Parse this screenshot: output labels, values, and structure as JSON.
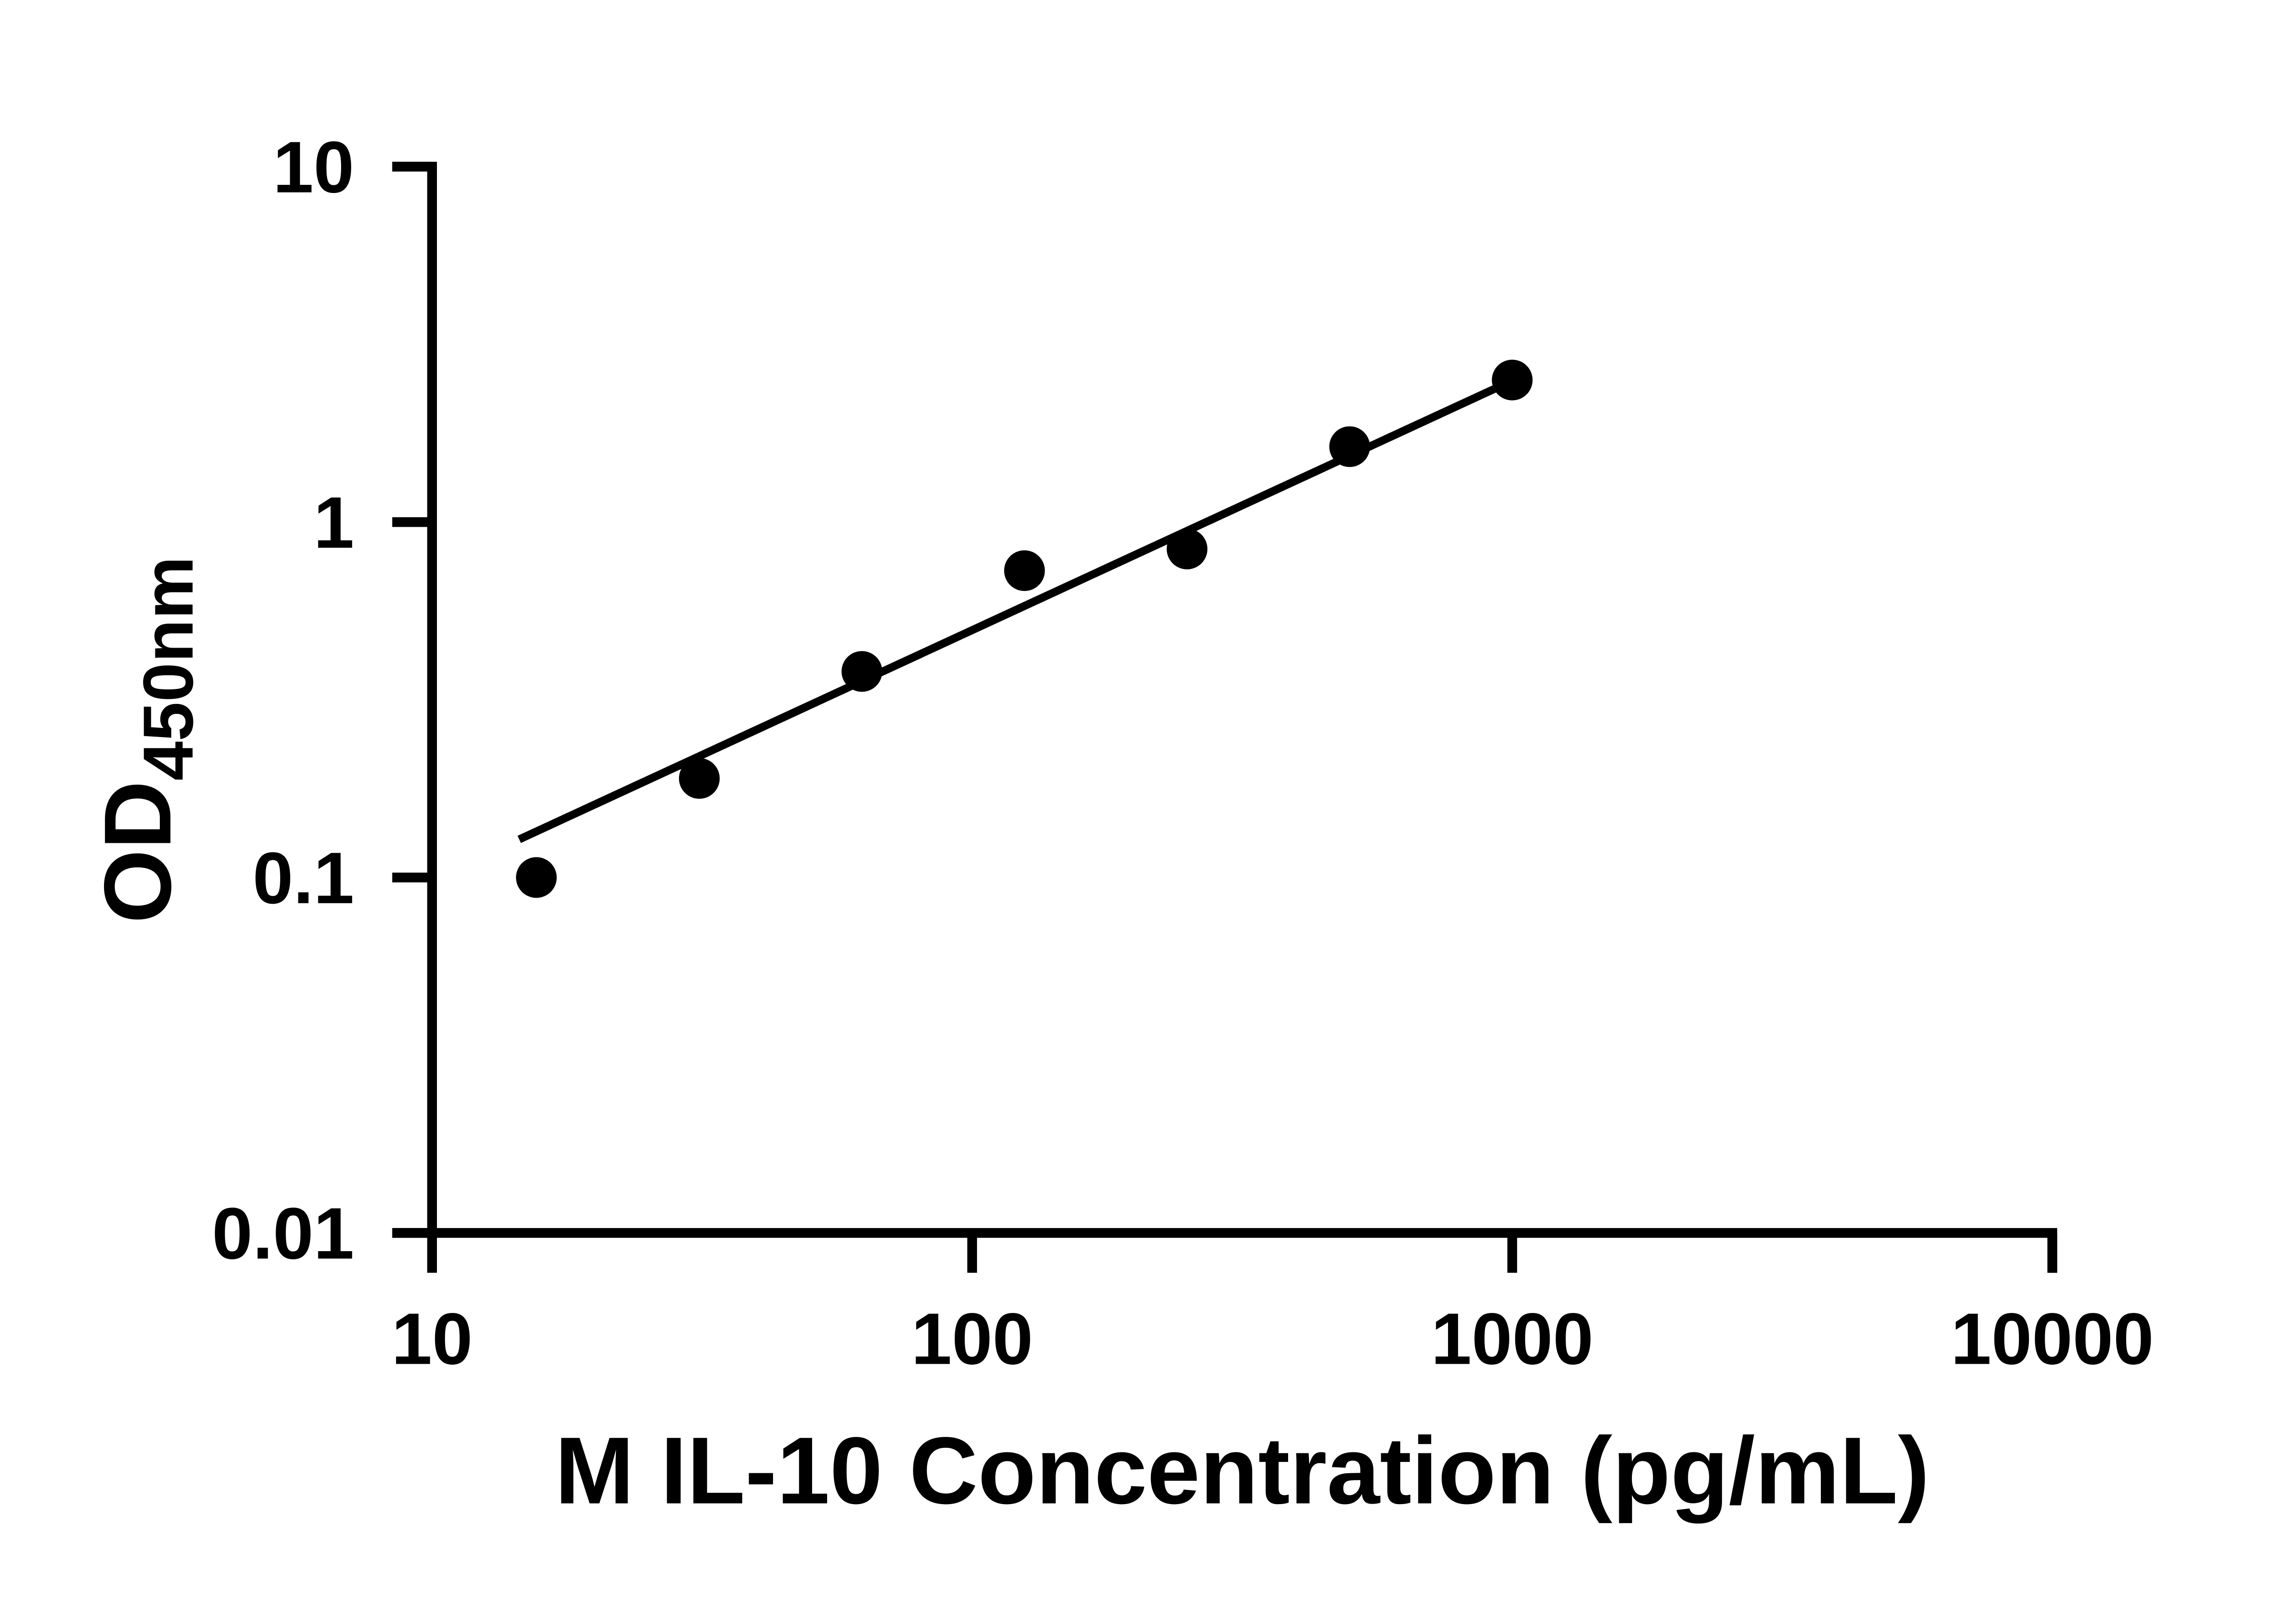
{
  "colors": {
    "foreground": "#000000",
    "background": "#ffffff"
  },
  "chart_data": {
    "type": "scatter",
    "title": "",
    "xlabel": "M IL-10 Concentration (pg/mL)",
    "ylabel": "OD",
    "ylabel_sub": "450nm",
    "x_scale": "log",
    "y_scale": "log",
    "xlim": [
      10,
      10000
    ],
    "ylim": [
      0.01,
      10
    ],
    "grid": false,
    "legend": "none",
    "x_ticks": [
      {
        "value": 10,
        "label": "10"
      },
      {
        "value": 100,
        "label": "100"
      },
      {
        "value": 1000,
        "label": "1000"
      },
      {
        "value": 10000,
        "label": "10000"
      }
    ],
    "y_ticks": [
      {
        "value": 10,
        "label": "10"
      },
      {
        "value": 1,
        "label": "1"
      },
      {
        "value": 0.1,
        "label": "0.1"
      },
      {
        "value": 0.01,
        "label": "0.01"
      }
    ],
    "series": [
      {
        "name": "standard-curve-points",
        "marker": "circle",
        "color": "#000000",
        "points": [
          {
            "x": 15.6,
            "y": 0.1
          },
          {
            "x": 31.25,
            "y": 0.19
          },
          {
            "x": 62.5,
            "y": 0.38
          },
          {
            "x": 125,
            "y": 0.73
          },
          {
            "x": 250,
            "y": 0.84
          },
          {
            "x": 500,
            "y": 1.63
          },
          {
            "x": 1000,
            "y": 2.51
          }
        ]
      }
    ],
    "trendline": {
      "x1": 14.5,
      "y1": 0.128,
      "x2": 1000,
      "y2": 2.5
    }
  }
}
